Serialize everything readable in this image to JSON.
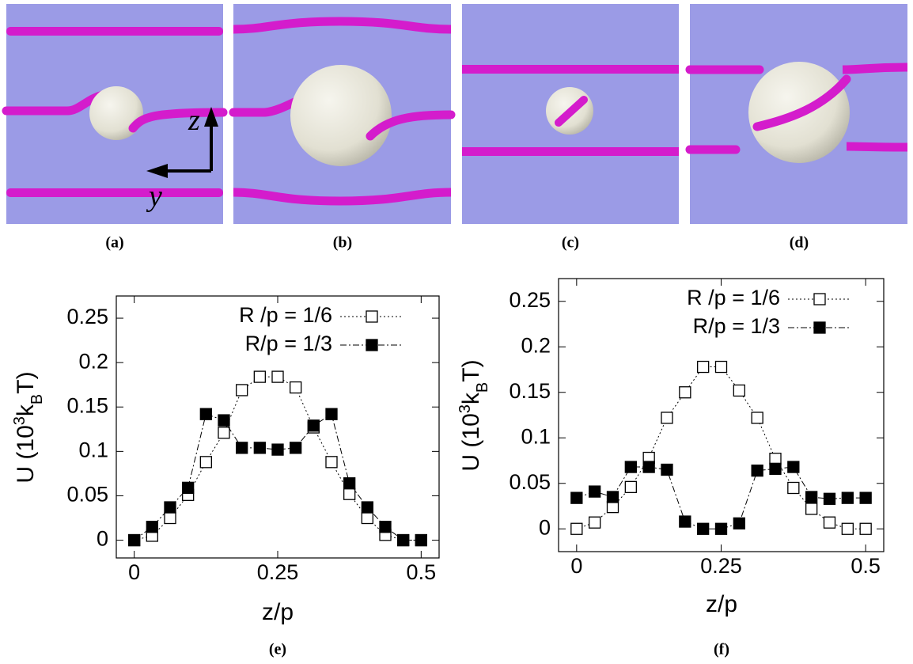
{
  "panels": [
    {
      "label": "(a)"
    },
    {
      "label": "(b)"
    },
    {
      "label": "(c)"
    },
    {
      "label": "(d)"
    }
  ],
  "axis_arrows": {
    "z": "z",
    "y": "y"
  },
  "chart_data": [
    {
      "type": "line",
      "label": "(e)",
      "xlabel": "z/p",
      "ylabel": [
        "U (10",
        "3",
        "k",
        "B",
        "T)"
      ],
      "x": [
        0,
        0.03125,
        0.0625,
        0.09375,
        0.125,
        0.15625,
        0.1875,
        0.21875,
        0.25,
        0.28125,
        0.3125,
        0.34375,
        0.375,
        0.40625,
        0.4375,
        0.46875,
        0.5
      ],
      "xlim": [
        -0.03125,
        0.53125
      ],
      "ylim": [
        -0.02,
        0.275
      ],
      "xticks": [
        0,
        0.25,
        0.5
      ],
      "yticks": [
        0,
        0.05,
        0.1,
        0.15,
        0.2,
        0.25
      ],
      "series": [
        {
          "name": "R /p = 1/6",
          "color": "#000000",
          "marker": "open-square",
          "dash": "2,3",
          "values": [
            0,
            0.005,
            0.025,
            0.051,
            0.088,
            0.121,
            0.169,
            0.184,
            0.184,
            0.172,
            0.127,
            0.088,
            0.052,
            0.025,
            0.006,
            0,
            0
          ]
        },
        {
          "name": "R/p = 1/3",
          "color": "#000000",
          "marker": "filled-square",
          "dash": "8,3,2,3",
          "values": [
            0,
            0.015,
            0.037,
            0.059,
            0.142,
            0.135,
            0.104,
            0.104,
            0.102,
            0.104,
            0.129,
            0.142,
            0.064,
            0.037,
            0.015,
            0,
            0
          ]
        }
      ]
    },
    {
      "type": "line",
      "label": "(f)",
      "xlabel": "z/p",
      "ylabel": [
        "U (10",
        "3",
        "k",
        "B",
        "T)"
      ],
      "x": [
        0,
        0.03125,
        0.0625,
        0.09375,
        0.125,
        0.15625,
        0.1875,
        0.21875,
        0.25,
        0.28125,
        0.3125,
        0.34375,
        0.375,
        0.40625,
        0.4375,
        0.46875,
        0.5
      ],
      "xlim": [
        -0.03125,
        0.53125
      ],
      "ylim": [
        -0.025,
        0.275
      ],
      "xticks": [
        0,
        0.25,
        0.5
      ],
      "yticks": [
        0,
        0.05,
        0.1,
        0.15,
        0.2,
        0.25
      ],
      "series": [
        {
          "name": "R /p = 1/6",
          "color": "#000000",
          "marker": "open-square",
          "dash": "2,3",
          "values": [
            0,
            0.007,
            0.024,
            0.046,
            0.078,
            0.122,
            0.15,
            0.178,
            0.178,
            0.152,
            0.122,
            0.077,
            0.045,
            0.022,
            0.007,
            0,
            0
          ]
        },
        {
          "name": "R/p = 1/3",
          "color": "#000000",
          "marker": "filled-square",
          "dash": "8,3,2,3",
          "values": [
            0.034,
            0.041,
            0.035,
            0.068,
            0.068,
            0.065,
            0.008,
            0,
            0,
            0.006,
            0.064,
            0.066,
            0.068,
            0.035,
            0.033,
            0.034,
            0.034
          ]
        }
      ]
    }
  ]
}
